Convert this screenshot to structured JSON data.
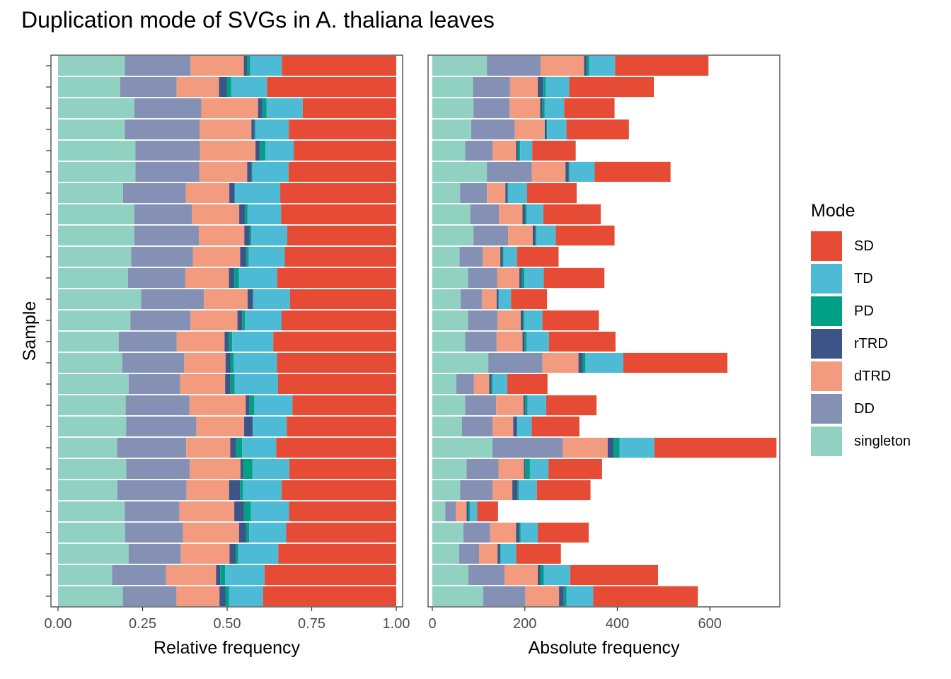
{
  "chart_data": {
    "title": "Duplication mode of SVGs in A. thaliana leaves",
    "type": "bar",
    "orientation": "horizontal",
    "stacked": true,
    "ylabel": "Sample",
    "legend": {
      "title": "Mode",
      "placement": "right",
      "entries": [
        {
          "name": "SD",
          "color": "#E64B35"
        },
        {
          "name": "TD",
          "color": "#4DBBD5"
        },
        {
          "name": "PD",
          "color": "#00A087"
        },
        {
          "name": "rTRD",
          "color": "#3C5488"
        },
        {
          "name": "dTRD",
          "color": "#F39B7F"
        },
        {
          "name": "DD",
          "color": "#8491B4"
        },
        {
          "name": "singleton",
          "color": "#91D1C2"
        }
      ]
    },
    "stack_order": [
      "singleton",
      "DD",
      "dTRD",
      "rTRD",
      "PD",
      "TD",
      "SD"
    ],
    "panels": [
      {
        "xlabel": "Relative frequency",
        "xlim": [
          0,
          1
        ],
        "xticks": [
          "0.00",
          "0.25",
          "0.50",
          "0.75",
          "1.00"
        ],
        "tick_values": [
          0,
          0.25,
          0.5,
          0.75,
          1
        ],
        "mode": "relative"
      },
      {
        "xlabel": "Absolute frequency",
        "xlim": [
          0,
          745
        ],
        "xticks": [
          "0",
          "200",
          "400",
          "600"
        ],
        "tick_values": [
          0,
          200,
          400,
          600
        ],
        "mode": "absolute"
      }
    ],
    "samples": [
      {
        "singleton": 118,
        "DD": 116,
        "dTRD": 94,
        "rTRD": 6,
        "PD": 5,
        "TD": 56,
        "SD": 202
      },
      {
        "singleton": 88,
        "DD": 80,
        "dTRD": 60,
        "rTRD": 11,
        "PD": 6,
        "TD": 51,
        "SD": 183
      },
      {
        "singleton": 89,
        "DD": 78,
        "dTRD": 66,
        "rTRD": 5,
        "PD": 5,
        "TD": 42,
        "SD": 109
      },
      {
        "singleton": 84,
        "DD": 94,
        "dTRD": 65,
        "rTRD": 4,
        "PD": 1,
        "TD": 42,
        "SD": 135
      },
      {
        "singleton": 71,
        "DD": 59,
        "dTRD": 51,
        "rTRD": 4,
        "PD": 5,
        "TD": 26,
        "SD": 94
      },
      {
        "singleton": 118,
        "DD": 97,
        "dTRD": 73,
        "rTRD": 7,
        "PD": 1,
        "TD": 55,
        "SD": 164
      },
      {
        "singleton": 60,
        "DD": 58,
        "dTRD": 40,
        "rTRD": 5,
        "PD": 0,
        "TD": 42,
        "SD": 107
      },
      {
        "singleton": 82,
        "DD": 62,
        "dTRD": 51,
        "rTRD": 6,
        "PD": 3,
        "TD": 36,
        "SD": 124
      },
      {
        "singleton": 89,
        "DD": 75,
        "dTRD": 53,
        "rTRD": 6,
        "PD": 2,
        "TD": 42,
        "SD": 127
      },
      {
        "singleton": 59,
        "DD": 50,
        "dTRD": 38,
        "rTRD": 5,
        "PD": 2,
        "TD": 29,
        "SD": 90
      },
      {
        "singleton": 77,
        "DD": 63,
        "dTRD": 48,
        "rTRD": 6,
        "PD": 5,
        "TD": 42,
        "SD": 131
      },
      {
        "singleton": 61,
        "DD": 46,
        "dTRD": 32,
        "rTRD": 4,
        "PD": 0,
        "TD": 27,
        "SD": 78
      },
      {
        "singleton": 77,
        "DD": 64,
        "dTRD": 50,
        "rTRD": 5,
        "PD": 3,
        "TD": 39,
        "SD": 122
      },
      {
        "singleton": 71,
        "DD": 68,
        "dTRD": 56,
        "rTRD": 5,
        "PD": 4,
        "TD": 48,
        "SD": 144
      },
      {
        "singleton": 121,
        "DD": 117,
        "dTRD": 78,
        "rTRD": 9,
        "PD": 6,
        "TD": 82,
        "SD": 225
      },
      {
        "singleton": 52,
        "DD": 38,
        "dTRD": 33,
        "rTRD": 4,
        "PD": 3,
        "TD": 32,
        "SD": 87
      },
      {
        "singleton": 71,
        "DD": 67,
        "dTRD": 59,
        "rTRD": 4,
        "PD": 5,
        "TD": 40,
        "SD": 109
      },
      {
        "singleton": 64,
        "DD": 66,
        "dTRD": 45,
        "rTRD": 8,
        "PD": 0,
        "TD": 32,
        "SD": 103
      },
      {
        "singleton": 130,
        "DD": 152,
        "dTRD": 97,
        "rTRD": 13,
        "PD": 13,
        "TD": 75,
        "SD": 264
      },
      {
        "singleton": 74,
        "DD": 69,
        "dTRD": 55,
        "rTRD": 3,
        "PD": 10,
        "TD": 40,
        "SD": 116
      },
      {
        "singleton": 60,
        "DD": 70,
        "dTRD": 43,
        "rTRD": 11,
        "PD": 3,
        "TD": 39,
        "SD": 116
      },
      {
        "singleton": 28,
        "DD": 23,
        "dTRD": 23,
        "rTRD": 4,
        "PD": 3,
        "TD": 16,
        "SD": 45
      },
      {
        "singleton": 67,
        "DD": 58,
        "dTRD": 56,
        "rTRD": 7,
        "PD": 3,
        "TD": 37,
        "SD": 110
      },
      {
        "singleton": 58,
        "DD": 43,
        "dTRD": 40,
        "rTRD": 5,
        "PD": 2,
        "TD": 33,
        "SD": 97
      },
      {
        "singleton": 78,
        "DD": 78,
        "dTRD": 72,
        "rTRD": 6,
        "PD": 7,
        "TD": 57,
        "SD": 190
      },
      {
        "singleton": 110,
        "DD": 91,
        "dTRD": 73,
        "rTRD": 10,
        "PD": 6,
        "TD": 58,
        "SD": 226
      }
    ]
  }
}
